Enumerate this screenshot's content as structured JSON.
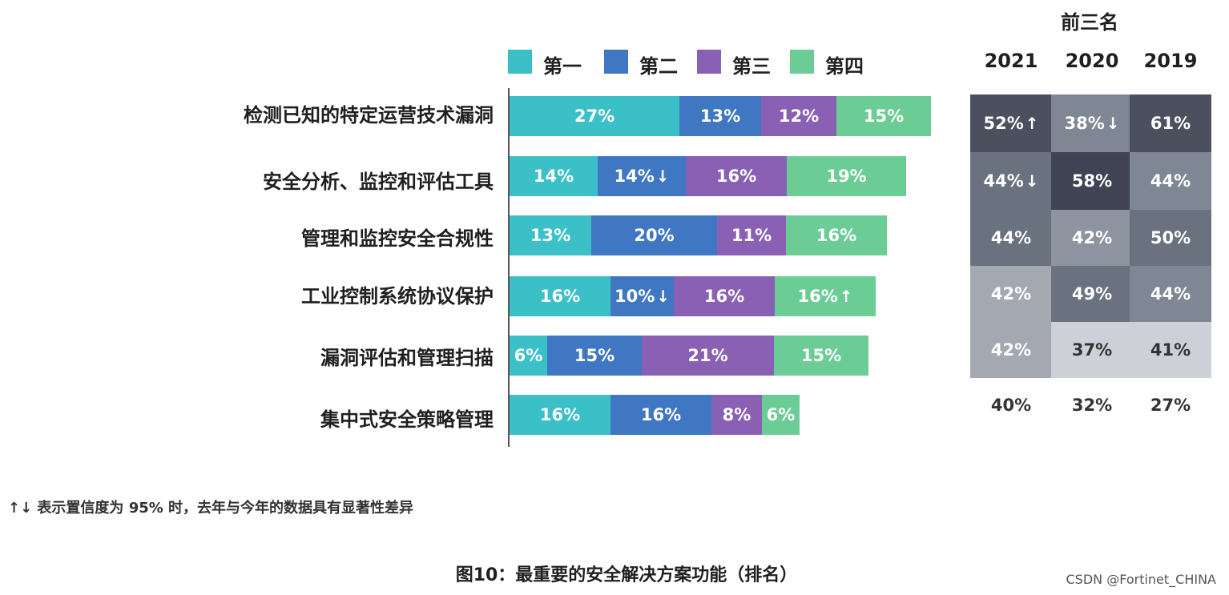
{
  "chart_data": [
    {
      "type": "bar",
      "orientation": "horizontal",
      "stacked": true,
      "categories": [
        "检测已知的特定运营技术漏洞",
        "安全分析、监控和评估工具",
        "管理和监控安全合规性",
        "工业控制系统协议保护",
        "漏洞评估和管理扫描",
        "集中式安全策略管理"
      ],
      "series": [
        {
          "name": "第一",
          "color": "#3bc0c8",
          "values": [
            27,
            14,
            13,
            16,
            6,
            16
          ],
          "labels": [
            "27%",
            "14%",
            "13%",
            "16%",
            "6%",
            "16%"
          ],
          "arrows": [
            "",
            "",
            "",
            "",
            "",
            ""
          ]
        },
        {
          "name": "第二",
          "color": "#3f77c3",
          "values": [
            13,
            14,
            20,
            10,
            15,
            16
          ],
          "labels": [
            "13%",
            "14%",
            "20%",
            "10%",
            "15%",
            "16%"
          ],
          "arrows": [
            "",
            "↓",
            "",
            "↓",
            "",
            ""
          ]
        },
        {
          "name": "第三",
          "color": "#8a60b5",
          "values": [
            12,
            16,
            11,
            16,
            21,
            8
          ],
          "labels": [
            "12%",
            "16%",
            "11%",
            "16%",
            "21%",
            "8%"
          ],
          "arrows": [
            "",
            "",
            "",
            "",
            "",
            ""
          ]
        },
        {
          "name": "第四",
          "color": "#6ccc95",
          "values": [
            15,
            19,
            16,
            16,
            15,
            6
          ],
          "labels": [
            "15%",
            "19%",
            "16%",
            "16%",
            "15%",
            "6%"
          ],
          "arrows": [
            "",
            "",
            "",
            "↑",
            "",
            ""
          ]
        }
      ],
      "legend_position": "top",
      "grid": false
    },
    {
      "type": "heatmap",
      "title": "前三名",
      "columns": [
        "2021",
        "2020",
        "2019"
      ],
      "rows": [
        "检测已知的特定运营技术漏洞",
        "安全分析、监控和评估工具",
        "管理和监控安全合规性",
        "工业控制系统协议保护",
        "漏洞评估和管理扫描",
        "集中式安全策略管理"
      ],
      "values": [
        [
          52,
          38,
          61
        ],
        [
          44,
          58,
          44
        ],
        [
          44,
          42,
          50
        ],
        [
          42,
          49,
          44
        ],
        [
          42,
          37,
          41
        ],
        [
          40,
          32,
          27
        ]
      ],
      "labels": [
        [
          "52%",
          "38%",
          "61%"
        ],
        [
          "44%",
          "58%",
          "44%"
        ],
        [
          "44%",
          "42%",
          "50%"
        ],
        [
          "42%",
          "49%",
          "44%"
        ],
        [
          "42%",
          "37%",
          "41%"
        ],
        [
          "40%",
          "32%",
          "27%"
        ]
      ],
      "arrows": [
        [
          "↑",
          "↓",
          ""
        ],
        [
          "↓",
          "",
          ""
        ],
        [
          "",
          "",
          ""
        ],
        [
          "",
          "",
          ""
        ],
        [
          "",
          "",
          ""
        ],
        [
          "",
          "",
          ""
        ]
      ],
      "cell_colors": [
        [
          "#4b4f5e",
          "#7f8795",
          "#4b4f5e"
        ],
        [
          "#6a7280",
          "#3f4353",
          "#7f8795"
        ],
        [
          "#6a7280",
          "#8d949f",
          "#6a7280"
        ],
        [
          "#a4a9b1",
          "#6a7280",
          "#7f8795"
        ],
        [
          "#a4a9b1",
          "#ced0d7",
          "#ced0d7"
        ],
        [
          "#ffffff",
          "#ffffff",
          "#ffffff"
        ]
      ],
      "text_colors": [
        [
          "#ffffff",
          "#ffffff",
          "#ffffff"
        ],
        [
          "#ffffff",
          "#ffffff",
          "#ffffff"
        ],
        [
          "#ffffff",
          "#ffffff",
          "#ffffff"
        ],
        [
          "#ffffff",
          "#ffffff",
          "#ffffff"
        ],
        [
          "#ffffff",
          "#333333",
          "#333333"
        ],
        [
          "#333333",
          "#333333",
          "#333333"
        ]
      ]
    }
  ],
  "note": "↑↓ 表示置信度为 95% 时，去年与今年的数据具有显著性差异",
  "caption": "图10：最重要的安全解决方案功能（排名）",
  "watermark": "CSDN @Fortinet_CHINA"
}
